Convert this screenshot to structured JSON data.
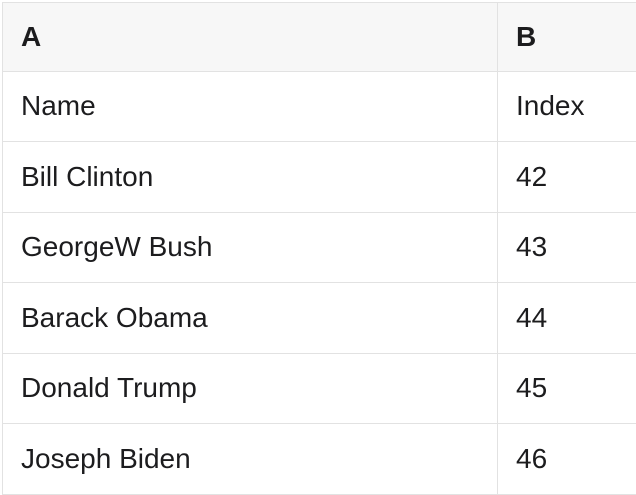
{
  "colors": {
    "bg": "#ffffff",
    "header_bg": "#f7f7f7",
    "border": "#e2e2e2",
    "text": "#1c1c1e"
  },
  "table": {
    "header": {
      "a": "A",
      "b": "B"
    },
    "rows": [
      {
        "a": "Name",
        "b": "Index"
      },
      {
        "a": "Bill Clinton",
        "b": "42"
      },
      {
        "a": "GeorgeW Bush",
        "b": "43"
      },
      {
        "a": "Barack Obama",
        "b": "44"
      },
      {
        "a": "Donald Trump",
        "b": "45"
      },
      {
        "a": "Joseph Biden",
        "b": "46"
      }
    ]
  }
}
